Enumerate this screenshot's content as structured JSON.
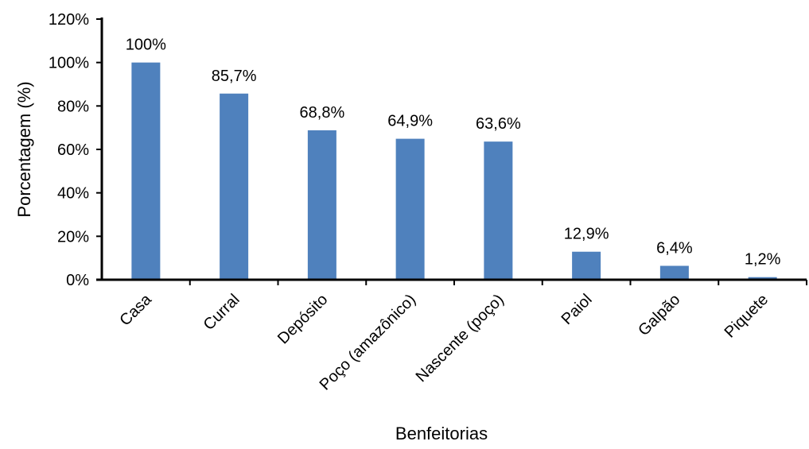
{
  "chart_data": {
    "type": "bar",
    "title": "",
    "xlabel": "Benfeitorias",
    "ylabel": "Porcentagem (%)",
    "ylim": [
      0,
      120
    ],
    "yticks": [
      0,
      20,
      40,
      60,
      80,
      100,
      120
    ],
    "ytick_labels": [
      "0%",
      "20%",
      "40%",
      "60%",
      "80%",
      "100%",
      "120%"
    ],
    "categories": [
      "Casa",
      "Curral",
      "Depósito",
      "Poço (amazônico)",
      "Nascente (poço)",
      "Paiol",
      "Galpão",
      "Piquete"
    ],
    "values": [
      100,
      85.7,
      68.8,
      64.9,
      63.6,
      12.9,
      6.4,
      1.2
    ],
    "data_labels": [
      "100%",
      "85,7%",
      "68,8%",
      "64,9%",
      "63,6%",
      "12,9%",
      "6,4%",
      "1,2%"
    ],
    "bar_color": "#4f81bd",
    "grid": false,
    "legend": "none"
  }
}
